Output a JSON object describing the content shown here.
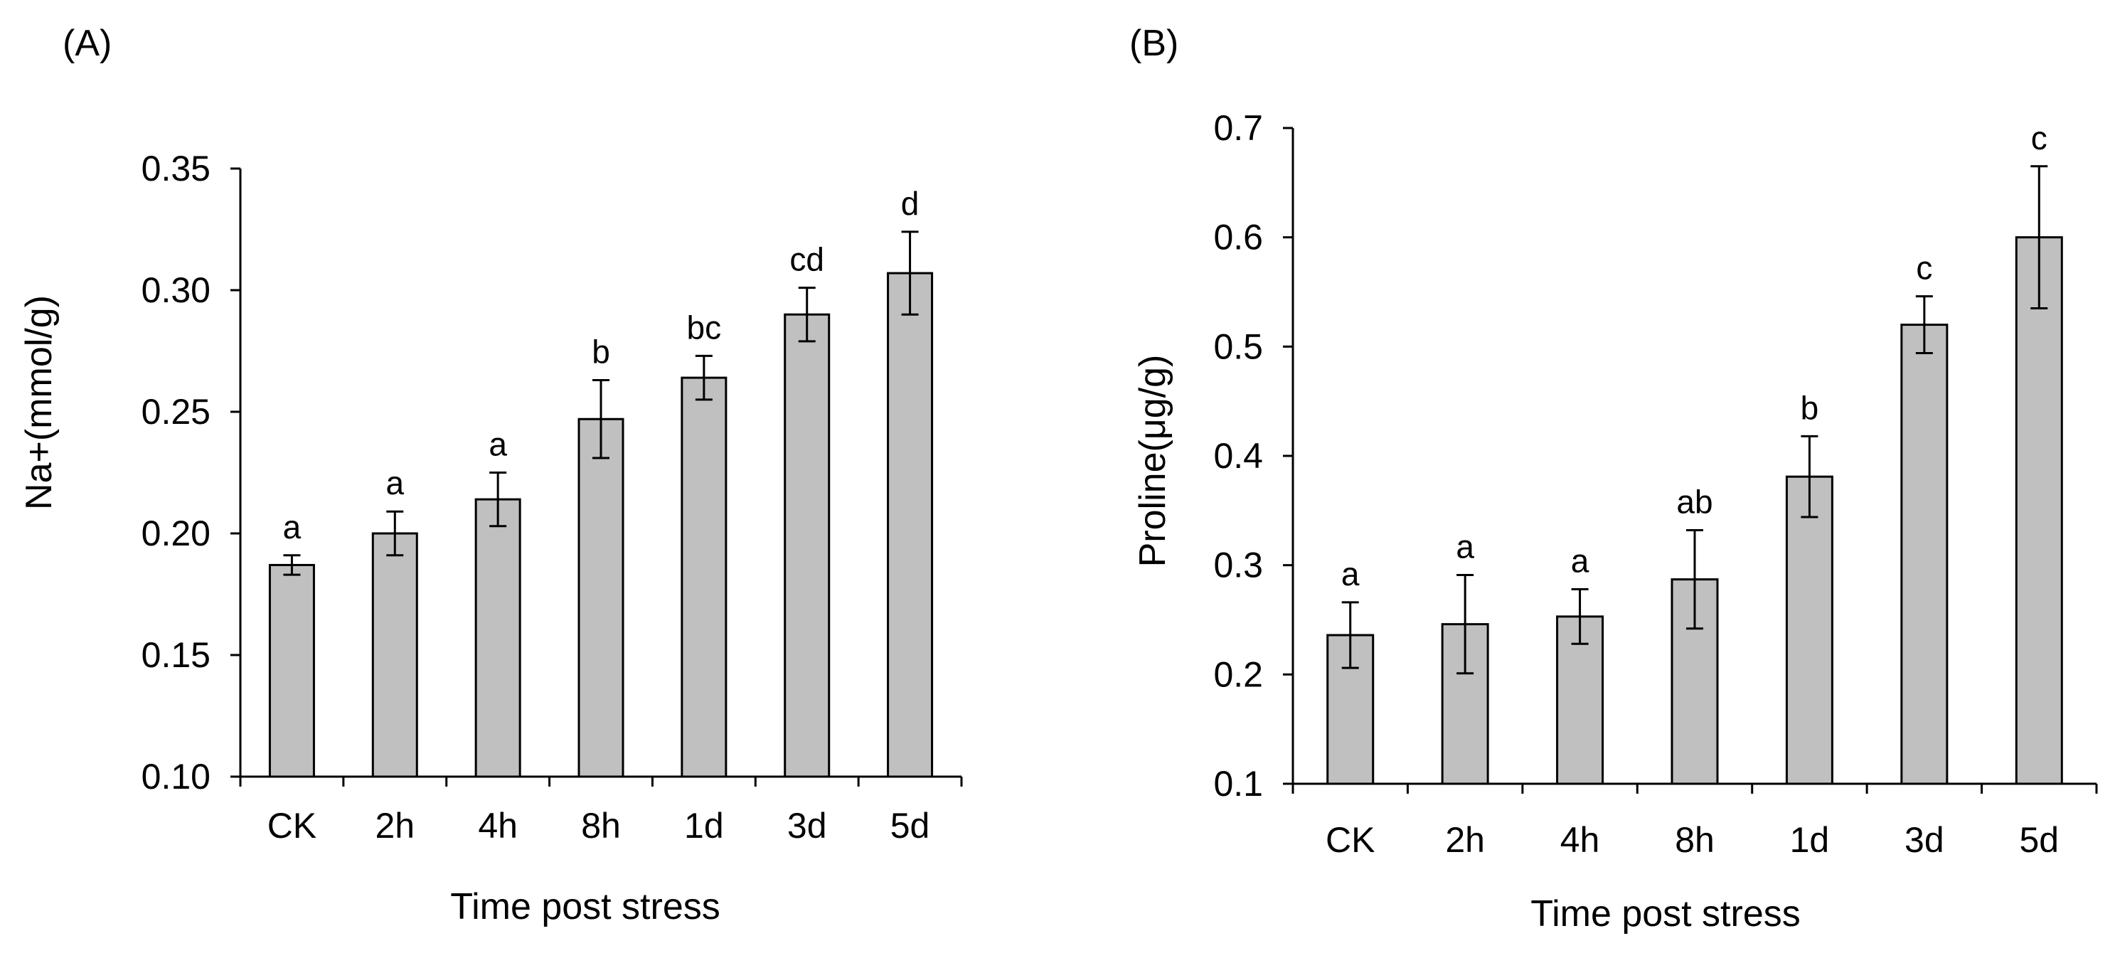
{
  "colors": {
    "bar_fill": "#c0c0c0",
    "bar_stroke": "#000000",
    "axis": "#000000"
  },
  "chart_data": [
    {
      "type": "bar",
      "panel_label": "(A)",
      "title": "",
      "xlabel": "Time post stress",
      "ylabel": "Na+(mmol/g)",
      "ylim": [
        0.1,
        0.35
      ],
      "yticks": [
        0.1,
        0.15,
        0.2,
        0.25,
        0.3,
        0.35
      ],
      "ytick_labels": [
        "0.10",
        "0.15",
        "0.20",
        "0.25",
        "0.30",
        "0.35"
      ],
      "grid": false,
      "categories": [
        "CK",
        "2h",
        "4h",
        "8h",
        "1d",
        "3d",
        "5d"
      ],
      "values": [
        0.187,
        0.2,
        0.214,
        0.247,
        0.264,
        0.29,
        0.307
      ],
      "errors": [
        0.004,
        0.009,
        0.011,
        0.016,
        0.009,
        0.011,
        0.017
      ],
      "significance": [
        "a",
        "a",
        "a",
        "b",
        "bc",
        "cd",
        "d"
      ]
    },
    {
      "type": "bar",
      "panel_label": "(B)",
      "title": "",
      "xlabel": "Time post stress",
      "ylabel": "Proline(μg/g)",
      "ylim": [
        0.1,
        0.7
      ],
      "yticks": [
        0.1,
        0.2,
        0.3,
        0.4,
        0.5,
        0.6,
        0.7
      ],
      "ytick_labels": [
        "0.1",
        "0.2",
        "0.3",
        "0.4",
        "0.5",
        "0.6",
        "0.7"
      ],
      "grid": false,
      "categories": [
        "CK",
        "2h",
        "4h",
        "8h",
        "1d",
        "3d",
        "5d"
      ],
      "values": [
        0.236,
        0.246,
        0.253,
        0.287,
        0.381,
        0.52,
        0.6
      ],
      "errors": [
        0.03,
        0.045,
        0.025,
        0.045,
        0.037,
        0.026,
        0.065
      ],
      "significance": [
        "a",
        "a",
        "a",
        "ab",
        "b",
        "c",
        "c"
      ]
    }
  ]
}
